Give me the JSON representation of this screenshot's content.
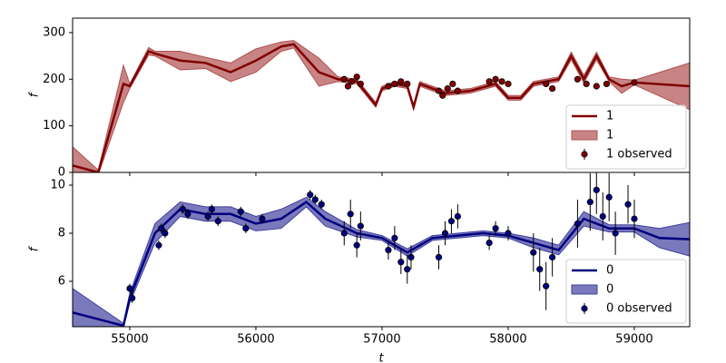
{
  "chart_data": [
    {
      "type": "line",
      "ylabel": "f",
      "xlim": [
        54547,
        59439
      ],
      "ylim": [
        0,
        331
      ],
      "xticks": [
        55000,
        56000,
        57000,
        58000,
        59000
      ],
      "yticks": [
        0,
        100,
        200,
        300
      ],
      "legend": "lower right",
      "series": [
        {
          "name": "1",
          "color": "#800000",
          "x": [
            54547,
            54750,
            54950,
            55000,
            55150,
            55200,
            55400,
            55600,
            55800,
            56000,
            56200,
            56300,
            56500,
            56650,
            56800,
            56950,
            57000,
            57100,
            57200,
            57250,
            57300,
            57500,
            57700,
            57900,
            58000,
            58100,
            58200,
            58400,
            58500,
            58600,
            58700,
            58800,
            58900,
            59000,
            59439
          ],
          "values": [
            15,
            0,
            190,
            185,
            260,
            255,
            240,
            235,
            215,
            240,
            270,
            275,
            215,
            200,
            195,
            145,
            180,
            190,
            185,
            140,
            190,
            170,
            175,
            190,
            160,
            160,
            190,
            200,
            250,
            200,
            250,
            200,
            185,
            193,
            185
          ]
        }
      ],
      "band": {
        "name": "1",
        "color": "#b05050",
        "lower": [
          -25,
          -5,
          150,
          180,
          252,
          250,
          220,
          223,
          195,
          215,
          260,
          267,
          185,
          195,
          190,
          140,
          175,
          185,
          180,
          135,
          185,
          165,
          170,
          185,
          155,
          155,
          185,
          195,
          242,
          192,
          242,
          195,
          170,
          188,
          135
        ],
        "upper": [
          55,
          5,
          230,
          190,
          268,
          260,
          260,
          247,
          235,
          265,
          280,
          283,
          245,
          205,
          200,
          150,
          185,
          195,
          190,
          145,
          195,
          175,
          180,
          195,
          165,
          165,
          195,
          205,
          258,
          208,
          258,
          205,
          200,
          198,
          235
        ]
      },
      "observed": {
        "name": "1 observed",
        "color": "#800000",
        "x": [
          56700,
          56730,
          56760,
          56800,
          56830,
          57050,
          57100,
          57150,
          57200,
          57450,
          57480,
          57520,
          57560,
          57600,
          57850,
          57900,
          57950,
          58000,
          58300,
          58350,
          58550,
          58620,
          58700,
          58780,
          59000
        ],
        "values": [
          200,
          185,
          195,
          205,
          190,
          185,
          190,
          195,
          190,
          175,
          165,
          180,
          190,
          175,
          195,
          200,
          195,
          190,
          190,
          180,
          200,
          190,
          185,
          190,
          193
        ],
        "errors": [
          5,
          5,
          5,
          5,
          5,
          5,
          5,
          5,
          5,
          5,
          5,
          5,
          5,
          5,
          5,
          5,
          5,
          5,
          5,
          5,
          5,
          5,
          5,
          5,
          5
        ]
      }
    },
    {
      "type": "line",
      "ylabel": "f",
      "xlabel": "t",
      "xlim": [
        54547,
        59439
      ],
      "ylim": [
        4.11,
        10.53
      ],
      "xticks": [
        55000,
        56000,
        57000,
        58000,
        59000
      ],
      "yticks": [
        6,
        8,
        10
      ],
      "legend": "lower right",
      "series": [
        {
          "name": "0",
          "color": "#000080",
          "x": [
            54547,
            54950,
            55000,
            55200,
            55400,
            55600,
            55800,
            56000,
            56200,
            56400,
            56550,
            56800,
            57000,
            57200,
            57400,
            57600,
            57800,
            58000,
            58200,
            58400,
            58600,
            58800,
            59000,
            59200,
            59439
          ],
          "values": [
            4.7,
            4.15,
            5.3,
            8.0,
            9.0,
            8.8,
            8.8,
            8.4,
            8.6,
            9.3,
            8.6,
            8.0,
            7.8,
            7.2,
            7.8,
            7.9,
            8.0,
            7.9,
            7.6,
            7.3,
            8.6,
            8.2,
            8.2,
            7.8,
            7.75
          ]
        }
      ],
      "band": {
        "name": "0",
        "color": "#4040a0",
        "lower": [
          3.7,
          4.05,
          5.1,
          7.6,
          8.7,
          8.5,
          8.5,
          8.1,
          8.2,
          9.1,
          8.3,
          7.85,
          7.7,
          7.05,
          7.7,
          7.8,
          7.9,
          7.8,
          7.4,
          7.1,
          8.3,
          8.05,
          8.05,
          7.4,
          7.05
        ],
        "upper": [
          5.7,
          4.25,
          5.5,
          8.4,
          9.3,
          9.1,
          9.1,
          8.7,
          9.0,
          9.5,
          8.9,
          8.15,
          7.9,
          7.35,
          7.9,
          8.0,
          8.1,
          8.0,
          7.8,
          7.5,
          8.9,
          8.35,
          8.35,
          8.2,
          8.45
        ]
      },
      "observed": {
        "name": "0 observed",
        "color": "#000080",
        "x": [
          55000,
          55020,
          55230,
          55250,
          55280,
          55420,
          55460,
          55620,
          55650,
          55700,
          55880,
          55920,
          56050,
          56430,
          56470,
          56520,
          56700,
          56750,
          56800,
          56830,
          57050,
          57100,
          57150,
          57200,
          57230,
          57450,
          57500,
          57550,
          57600,
          57850,
          57900,
          58000,
          58200,
          58250,
          58300,
          58350,
          58550,
          58650,
          58700,
          58750,
          58800,
          58850,
          58950,
          59000
        ],
        "values": [
          5.7,
          5.3,
          7.5,
          8.2,
          8.0,
          9.0,
          8.8,
          8.7,
          9.0,
          8.5,
          8.9,
          8.2,
          8.6,
          9.6,
          9.4,
          9.2,
          8.0,
          8.8,
          7.5,
          8.3,
          7.3,
          7.8,
          6.8,
          6.5,
          7.0,
          7.0,
          8.0,
          8.5,
          8.7,
          7.6,
          8.2,
          8.0,
          7.2,
          6.5,
          5.8,
          7.0,
          8.4,
          9.3,
          9.8,
          8.7,
          9.5,
          8.0,
          9.2,
          8.6
        ],
        "errors": [
          0.2,
          0.2,
          0.2,
          0.2,
          0.2,
          0.2,
          0.2,
          0.2,
          0.2,
          0.2,
          0.2,
          0.2,
          0.2,
          0.2,
          0.2,
          0.2,
          0.5,
          0.6,
          0.5,
          0.6,
          0.4,
          0.5,
          0.5,
          0.6,
          0.5,
          0.5,
          0.5,
          0.5,
          0.5,
          0.3,
          0.3,
          0.3,
          0.8,
          0.9,
          1.0,
          0.8,
          1.0,
          1.2,
          1.0,
          1.0,
          1.0,
          0.9,
          0.8,
          0.8
        ]
      }
    }
  ]
}
